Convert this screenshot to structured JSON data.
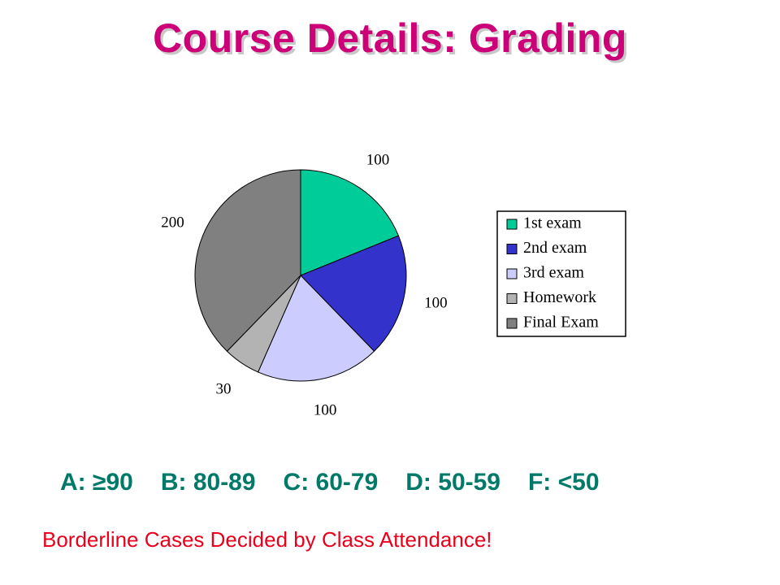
{
  "slide": {
    "title": "Course Details: Grading",
    "grading_scale": [
      {
        "label": "A: ≥90"
      },
      {
        "label": "B: 80-89"
      },
      {
        "label": "C: 60-79"
      },
      {
        "label": "D: 50-59"
      },
      {
        "label": "F: <50"
      }
    ],
    "footnote": "Borderline Cases Decided by Class Attendance!"
  },
  "chart_data": {
    "type": "pie",
    "title": "",
    "categories": [
      "1st exam",
      "2nd exam",
      "3rd exam",
      "Homework",
      "Final Exam"
    ],
    "values": [
      100,
      100,
      100,
      30,
      200
    ],
    "data_labels": [
      "100",
      "100",
      "100",
      "30",
      "200"
    ],
    "colors": [
      "#00cc99",
      "#3333cc",
      "#ccccff",
      "#b3b3b3",
      "#808080"
    ],
    "start_angle_deg": 0,
    "direction": "clockwise",
    "legend": {
      "position": "right",
      "entries": [
        "1st exam",
        "2nd exam",
        "3rd exam",
        "Homework",
        "Final Exam"
      ]
    }
  }
}
